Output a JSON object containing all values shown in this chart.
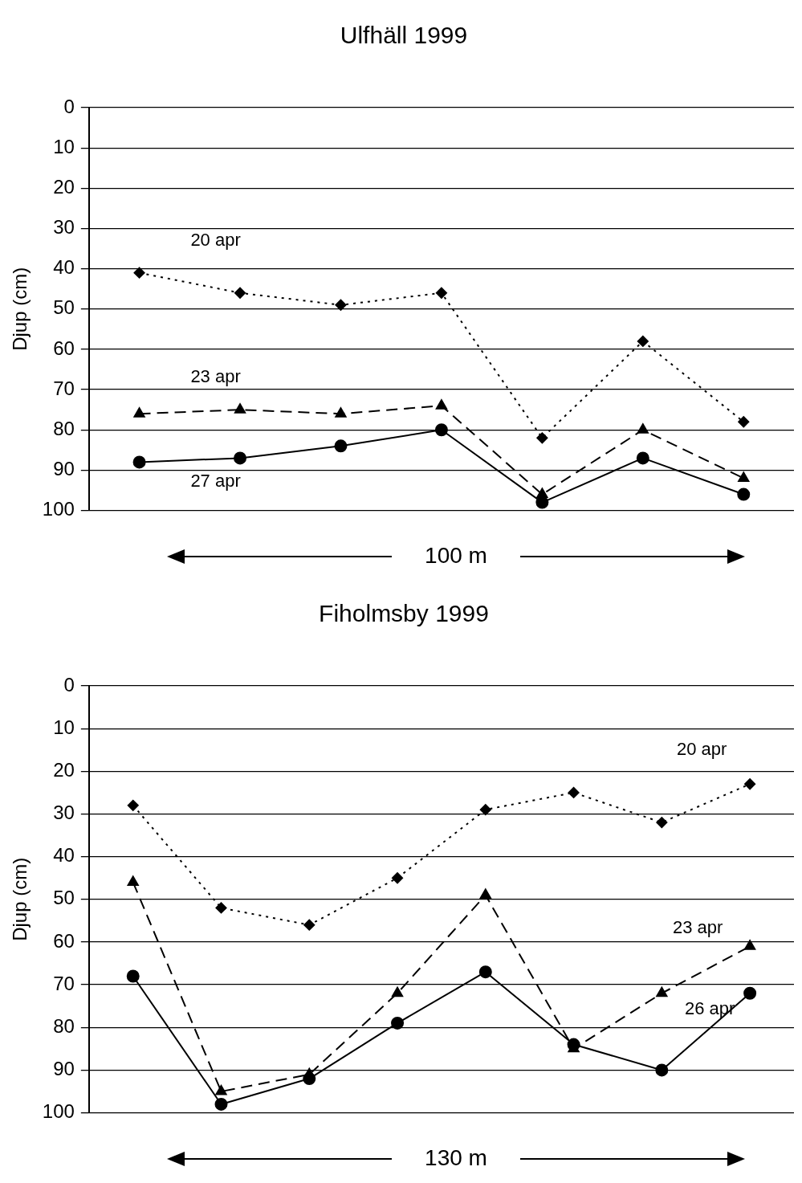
{
  "chart_data": [
    {
      "type": "line",
      "title": "Ulfhäll 1999",
      "ylabel": "Djup (cm)",
      "categories": [
        null,
        null,
        null,
        null,
        null,
        null,
        null
      ],
      "ylim": [
        100,
        0
      ],
      "yticks": [
        0,
        10,
        20,
        30,
        40,
        50,
        60,
        70,
        80,
        90,
        100
      ],
      "grid": "y",
      "legend": false,
      "annotations": [
        "100 m"
      ],
      "series": [
        {
          "name": "20 apr",
          "color": "#000000",
          "marker": "diamond",
          "line_style": "dotted",
          "values": [
            41,
            46,
            49,
            46,
            82,
            58,
            78
          ]
        },
        {
          "name": "23 apr",
          "color": "#000000",
          "marker": "triangle",
          "line_style": "dashed",
          "values": [
            76,
            75,
            76,
            74,
            96,
            80,
            92
          ]
        },
        {
          "name": "27 apr",
          "color": "#000000",
          "marker": "circle",
          "line_style": "solid",
          "values": [
            88,
            87,
            84,
            80,
            98,
            87,
            96
          ]
        }
      ]
    },
    {
      "type": "line",
      "title": "Fiholmsby 1999",
      "ylabel": "Djup (cm)",
      "categories": [
        null,
        null,
        null,
        null,
        null,
        null,
        null,
        null
      ],
      "ylim": [
        100,
        0
      ],
      "yticks": [
        0,
        10,
        20,
        30,
        40,
        50,
        60,
        70,
        80,
        90,
        100
      ],
      "grid": "y",
      "legend": false,
      "annotations": [
        "130 m"
      ],
      "series": [
        {
          "name": "20 apr",
          "color": "#000000",
          "marker": "diamond",
          "line_style": "dotted",
          "values": [
            28,
            52,
            56,
            45,
            29,
            25,
            32,
            23
          ]
        },
        {
          "name": "23 apr",
          "color": "#000000",
          "marker": "triangle",
          "line_style": "dashed",
          "values": [
            46,
            95,
            91,
            72,
            49,
            85,
            72,
            61
          ]
        },
        {
          "name": "26 apr",
          "color": "#000000",
          "marker": "circle",
          "line_style": "solid",
          "values": [
            68,
            98,
            92,
            79,
            67,
            84,
            90,
            72
          ]
        }
      ]
    }
  ]
}
